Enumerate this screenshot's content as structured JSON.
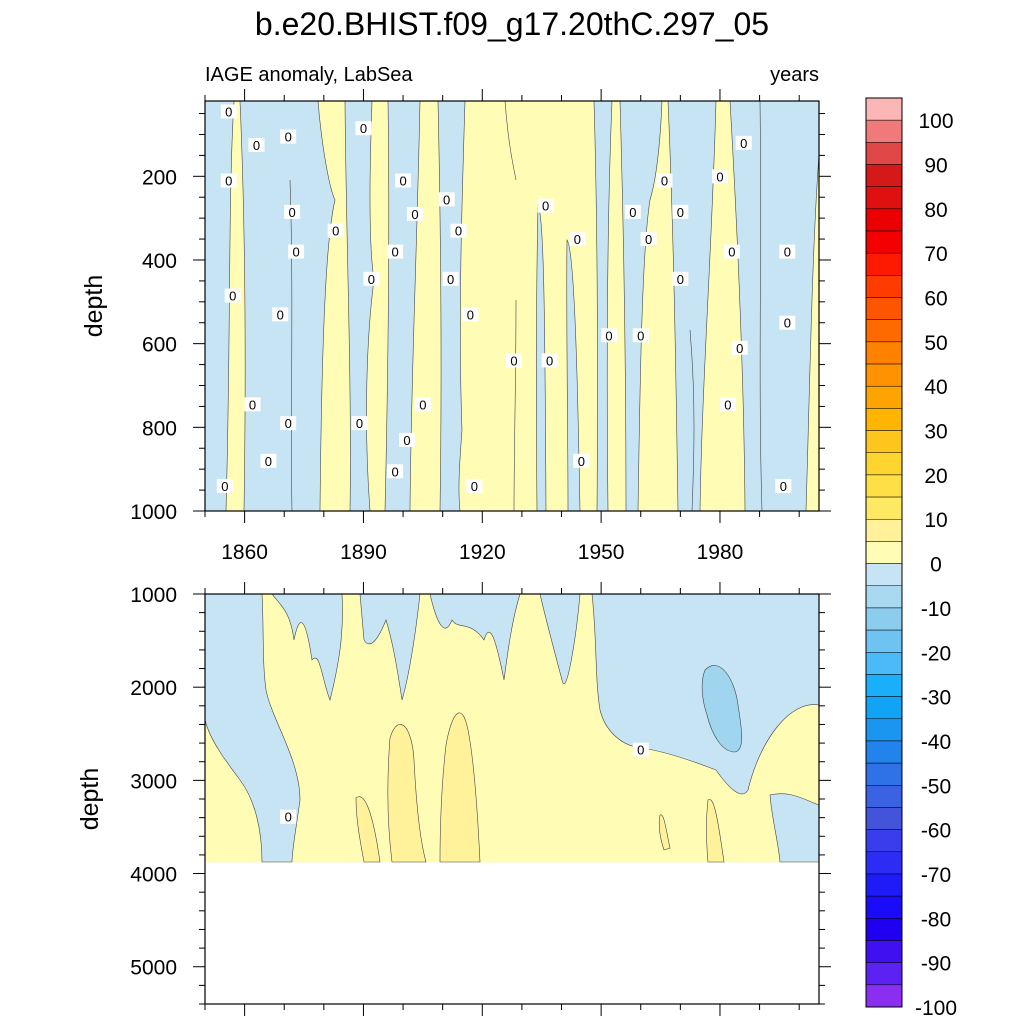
{
  "figure": {
    "title": "b.e20.BHIST.f09_g17.20thC.297_05",
    "left_string": "IAGE anomaly, LabSea",
    "right_string": "years"
  },
  "chart_data": {
    "type": "heatmap",
    "title": "b.e20.BHIST.f09_g17.20thC.297_05",
    "variable": "IAGE anomaly, LabSea",
    "units": "years",
    "x_range": [
      1850,
      2005
    ],
    "x_ticks": [
      1860,
      1890,
      1920,
      1950,
      1980
    ],
    "x_tick_labels": [
      "1860",
      "1890",
      "1920",
      "1950",
      "1980"
    ],
    "colorbar": {
      "levels": [
        -100,
        -95,
        -90,
        -85,
        -80,
        -75,
        -70,
        -65,
        -60,
        -55,
        -50,
        -45,
        -40,
        -35,
        -30,
        -25,
        -20,
        -15,
        -10,
        -5,
        0,
        5,
        10,
        15,
        20,
        25,
        30,
        35,
        40,
        45,
        50,
        55,
        60,
        65,
        70,
        75,
        80,
        85,
        90,
        95,
        100
      ],
      "labels": [
        "100",
        "90",
        "80",
        "70",
        "60",
        "50",
        "40",
        "30",
        "20",
        "10",
        "0",
        "-10",
        "-20",
        "-30",
        "-40",
        "-50",
        "-60",
        "-70",
        "-80",
        "-90",
        "-100"
      ],
      "colors": [
        "#fdb6b6",
        "#f07a7a",
        "#e04848",
        "#d51919",
        "#de1010",
        "#ea0000",
        "#f40000",
        "#fe1a00",
        "#fe3c00",
        "#fe5500",
        "#fe6a00",
        "#fe8100",
        "#fe9200",
        "#fea400",
        "#feb500",
        "#fec61c",
        "#fed42e",
        "#fedf46",
        "#fee965",
        "#fff29a",
        "#fffcb6",
        "#c6e4f4",
        "#a9d9f0",
        "#8ccdee",
        "#6ec3f2",
        "#4cbaf7",
        "#1aaffb",
        "#11a3f5",
        "#1a96f0",
        "#2183eb",
        "#2f72e7",
        "#3a62e3",
        "#4353da",
        "#3a3dec",
        "#2d2cf4",
        "#1f1bf8",
        "#1a0cf8",
        "#2000f0",
        "#3f10f0",
        "#5b22f2",
        "#8a2ef0"
      ]
    },
    "panels": [
      {
        "name": "upper",
        "ylabel": "depth",
        "y_range": [
          20,
          1000
        ],
        "y_ticks": [
          200,
          400,
          600,
          800,
          1000
        ],
        "y_tick_labels": [
          "200",
          "400",
          "600",
          "800",
          "1000"
        ],
        "dominant_values": [
          "0 to 5",
          "-5 to 0"
        ],
        "contour_labels": [
          {
            "year": 1856,
            "depth": 45,
            "text": "0"
          },
          {
            "year": 1856,
            "depth": 210,
            "text": "0"
          },
          {
            "year": 1857,
            "depth": 485,
            "text": "0"
          },
          {
            "year": 1855,
            "depth": 940,
            "text": "0"
          },
          {
            "year": 1863,
            "depth": 125,
            "text": "0"
          },
          {
            "year": 1862,
            "depth": 745,
            "text": "0"
          },
          {
            "year": 1866,
            "depth": 880,
            "text": "0"
          },
          {
            "year": 1869,
            "depth": 530,
            "text": "0"
          },
          {
            "year": 1871,
            "depth": 105,
            "text": "0"
          },
          {
            "year": 1872,
            "depth": 285,
            "text": "0"
          },
          {
            "year": 1873,
            "depth": 380,
            "text": "0"
          },
          {
            "year": 1871,
            "depth": 790,
            "text": "0"
          },
          {
            "year": 1883,
            "depth": 330,
            "text": "0"
          },
          {
            "year": 1890,
            "depth": 85,
            "text": "0"
          },
          {
            "year": 1892,
            "depth": 445,
            "text": "0"
          },
          {
            "year": 1889,
            "depth": 790,
            "text": "0"
          },
          {
            "year": 1898,
            "depth": 380,
            "text": "0"
          },
          {
            "year": 1900,
            "depth": 210,
            "text": "0"
          },
          {
            "year": 1903,
            "depth": 290,
            "text": "0"
          },
          {
            "year": 1905,
            "depth": 745,
            "text": "0"
          },
          {
            "year": 1901,
            "depth": 830,
            "text": "0"
          },
          {
            "year": 1898,
            "depth": 905,
            "text": "0"
          },
          {
            "year": 1911,
            "depth": 255,
            "text": "0"
          },
          {
            "year": 1914,
            "depth": 330,
            "text": "0"
          },
          {
            "year": 1912,
            "depth": 445,
            "text": "0"
          },
          {
            "year": 1917,
            "depth": 530,
            "text": "0"
          },
          {
            "year": 1918,
            "depth": 940,
            "text": "0"
          },
          {
            "year": 1928,
            "depth": 640,
            "text": "0"
          },
          {
            "year": 1936,
            "depth": 270,
            "text": "0"
          },
          {
            "year": 1937,
            "depth": 640,
            "text": "0"
          },
          {
            "year": 1944,
            "depth": 350,
            "text": "0"
          },
          {
            "year": 1945,
            "depth": 880,
            "text": "0"
          },
          {
            "year": 1952,
            "depth": 580,
            "text": "0"
          },
          {
            "year": 1958,
            "depth": 285,
            "text": "0"
          },
          {
            "year": 1960,
            "depth": 580,
            "text": "0"
          },
          {
            "year": 1962,
            "depth": 350,
            "text": "0"
          },
          {
            "year": 1966,
            "depth": 210,
            "text": "0"
          },
          {
            "year": 1970,
            "depth": 285,
            "text": "0"
          },
          {
            "year": 1970,
            "depth": 445,
            "text": "0"
          },
          {
            "year": 1980,
            "depth": 200,
            "text": "0"
          },
          {
            "year": 1983,
            "depth": 380,
            "text": "0"
          },
          {
            "year": 1982,
            "depth": 745,
            "text": "0"
          },
          {
            "year": 1986,
            "depth": 120,
            "text": "0"
          },
          {
            "year": 1985,
            "depth": 610,
            "text": "0"
          },
          {
            "year": 1997,
            "depth": 380,
            "text": "0"
          },
          {
            "year": 1997,
            "depth": 550,
            "text": "0"
          },
          {
            "year": 1996,
            "depth": 940,
            "text": "0"
          }
        ]
      },
      {
        "name": "lower",
        "ylabel": "depth",
        "y_range": [
          1000,
          5400
        ],
        "y_ticks": [
          1000,
          2000,
          3000,
          4000,
          5000
        ],
        "y_tick_labels": [
          "1000",
          "2000",
          "3000",
          "4000",
          "5000"
        ],
        "data_floor_depth": 3880,
        "dominant_values": [
          "0 to 5",
          "5 to 10",
          "-5 to 0",
          "-10 to -5"
        ],
        "contour_labels": [
          {
            "year": 1960,
            "depth": 2670,
            "text": "0"
          },
          {
            "year": 1871,
            "depth": 3390,
            "text": "0"
          }
        ]
      }
    ]
  }
}
